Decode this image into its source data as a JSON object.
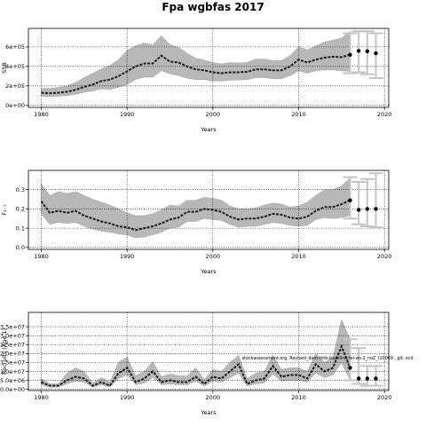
{
  "title": "Fpa wgbfas 2017",
  "colors": {
    "band": "#b8b8b8",
    "line": "#1a1a1a",
    "proj_bar": "#c4c4c4",
    "grid": "#000000"
  },
  "chart_data": [
    {
      "type": "line",
      "xlabel": "Years",
      "ylabel": "SSB",
      "xlim": [
        1978.5,
        2020.5
      ],
      "ylim": [
        -20000,
        790000
      ],
      "xticks": [
        1980,
        1990,
        2000,
        2010,
        2020
      ],
      "xtick_labels": [
        "1980",
        "1990",
        "2000",
        "2010",
        "2020"
      ],
      "yticks": [
        0,
        200000,
        400000,
        600000
      ],
      "ytick_labels": [
        "0e+00",
        "2e+05",
        "4e+05",
        "6e+05"
      ],
      "grid": true,
      "x": [
        1980,
        1981,
        1982,
        1983,
        1984,
        1985,
        1986,
        1987,
        1988,
        1989,
        1990,
        1991,
        1992,
        1993,
        1994,
        1995,
        1996,
        1997,
        1998,
        1999,
        2000,
        2001,
        2002,
        2003,
        2004,
        2005,
        2006,
        2007,
        2008,
        2009,
        2010,
        2011,
        2012,
        2013,
        2014,
        2015,
        2016
      ],
      "series": [
        {
          "role": "estimate",
          "values": [
            130000,
            125000,
            130000,
            140000,
            160000,
            190000,
            215000,
            250000,
            265000,
            300000,
            350000,
            400000,
            430000,
            430000,
            510000,
            450000,
            440000,
            400000,
            370000,
            360000,
            340000,
            330000,
            340000,
            340000,
            345000,
            370000,
            370000,
            360000,
            360000,
            400000,
            470000,
            440000,
            470000,
            490000,
            500000,
            495000,
            520000
          ]
        },
        {
          "role": "upper",
          "values": [
            175000,
            175000,
            185000,
            200000,
            235000,
            285000,
            330000,
            375000,
            410000,
            470000,
            565000,
            610000,
            640000,
            620000,
            715000,
            625000,
            595000,
            535000,
            485000,
            465000,
            440000,
            425000,
            440000,
            435000,
            440000,
            475000,
            475000,
            460000,
            460000,
            510000,
            600000,
            570000,
            610000,
            650000,
            670000,
            690000,
            760000
          ]
        },
        {
          "role": "lower",
          "values": [
            95000,
            90000,
            95000,
            100000,
            115000,
            135000,
            150000,
            170000,
            165000,
            185000,
            215000,
            265000,
            290000,
            290000,
            355000,
            325000,
            305000,
            280000,
            265000,
            265000,
            250000,
            250000,
            260000,
            260000,
            265000,
            285000,
            285000,
            275000,
            275000,
            305000,
            355000,
            330000,
            355000,
            365000,
            365000,
            355000,
            350000
          ]
        }
      ],
      "projection": {
        "x": [
          2016,
          2017,
          2018,
          2019
        ],
        "values": [
          520000,
          560000,
          555000,
          535000
        ],
        "upper": [
          740000,
          760000,
          760000,
          740000
        ],
        "lower": [
          330000,
          340000,
          320000,
          280000
        ]
      }
    },
    {
      "type": "line",
      "xlabel": "Years",
      "ylabel": "F₃₋₇",
      "xlim": [
        1978.5,
        2020.5
      ],
      "ylim": [
        -0.01,
        0.4
      ],
      "xticks": [
        1980,
        1990,
        2000,
        2010,
        2020
      ],
      "xtick_labels": [
        "1980",
        "1990",
        "2000",
        "2010",
        "2020"
      ],
      "yticks": [
        0.0,
        0.1,
        0.2,
        0.3
      ],
      "ytick_labels": [
        "0.0",
        "0.1",
        "0.2",
        "0.3"
      ],
      "grid": true,
      "x": [
        1980,
        1981,
        1982,
        1983,
        1984,
        1985,
        1986,
        1987,
        1988,
        1989,
        1990,
        1991,
        1992,
        1993,
        1994,
        1995,
        1996,
        1997,
        1998,
        1999,
        2000,
        2001,
        2002,
        2003,
        2004,
        2005,
        2006,
        2007,
        2008,
        2009,
        2010,
        2011,
        2012,
        2013,
        2014,
        2015,
        2016
      ],
      "series": [
        {
          "role": "estimate",
          "values": [
            0.24,
            0.18,
            0.19,
            0.18,
            0.19,
            0.165,
            0.15,
            0.135,
            0.125,
            0.11,
            0.105,
            0.09,
            0.1,
            0.11,
            0.125,
            0.145,
            0.155,
            0.185,
            0.185,
            0.2,
            0.195,
            0.185,
            0.16,
            0.145,
            0.15,
            0.15,
            0.16,
            0.175,
            0.17,
            0.155,
            0.15,
            0.16,
            0.19,
            0.21,
            0.21,
            0.225,
            0.245
          ]
        },
        {
          "role": "upper",
          "values": [
            0.33,
            0.27,
            0.29,
            0.28,
            0.29,
            0.27,
            0.25,
            0.235,
            0.22,
            0.2,
            0.18,
            0.165,
            0.165,
            0.175,
            0.195,
            0.22,
            0.215,
            0.245,
            0.245,
            0.26,
            0.255,
            0.245,
            0.215,
            0.2,
            0.2,
            0.205,
            0.22,
            0.23,
            0.225,
            0.21,
            0.215,
            0.235,
            0.27,
            0.3,
            0.3,
            0.32,
            0.36
          ]
        },
        {
          "role": "lower",
          "values": [
            0.175,
            0.12,
            0.13,
            0.125,
            0.13,
            0.11,
            0.095,
            0.085,
            0.08,
            0.07,
            0.065,
            0.05,
            0.055,
            0.065,
            0.08,
            0.1,
            0.105,
            0.135,
            0.135,
            0.15,
            0.145,
            0.14,
            0.12,
            0.105,
            0.11,
            0.11,
            0.12,
            0.13,
            0.125,
            0.115,
            0.11,
            0.115,
            0.145,
            0.155,
            0.15,
            0.155,
            0.165
          ]
        }
      ],
      "projection": {
        "x": [
          2016,
          2017,
          2018,
          2019
        ],
        "values": [
          0.245,
          0.195,
          0.2,
          0.2
        ],
        "upper": [
          0.365,
          0.34,
          0.355,
          0.385
        ],
        "lower": [
          0.15,
          0.12,
          0.11,
          0.105
        ]
      }
    },
    {
      "type": "line",
      "xlabel": "Years",
      "ylabel": "Recruits (Age 1)",
      "xlim": [
        1978.5,
        2020.5
      ],
      "ylim": [
        -700000,
        43000000
      ],
      "xticks": [
        1980,
        1990,
        2000,
        2010,
        2020
      ],
      "xtick_labels": [
        "1980",
        "1990",
        "2000",
        "2010",
        "2020"
      ],
      "yticks": [
        0,
        5000000,
        10000000,
        15000000,
        20000000,
        25000000,
        30000000,
        35000000
      ],
      "ytick_labels": [
        "0.0e+00",
        "5.0e+06",
        "1.0e+07",
        "1.5e+07",
        "2.0e+07",
        "2.5e+07",
        "3.0e+07",
        "3.5e+07"
      ],
      "grid": true,
      "x": [
        1980,
        1981,
        1982,
        1983,
        1984,
        1985,
        1986,
        1987,
        1988,
        1989,
        1990,
        1991,
        1992,
        1993,
        1994,
        1995,
        1996,
        1997,
        1998,
        1999,
        2000,
        2001,
        2002,
        2003,
        2004,
        2005,
        2006,
        2007,
        2008,
        2009,
        2010,
        2011,
        2012,
        2013,
        2014,
        2015,
        2016
      ],
      "series": [
        {
          "role": "estimate",
          "values": [
            4000000,
            2000000,
            2000000,
            5000000,
            7000000,
            6000000,
            2000000,
            4000000,
            2000000,
            9000000,
            12000000,
            4000000,
            6000000,
            10000000,
            4000000,
            5000000,
            4000000,
            4000000,
            7000000,
            3000000,
            7000000,
            6000000,
            10000000,
            14000000,
            3000000,
            5000000,
            6000000,
            13000000,
            7000000,
            8000000,
            8000000,
            6000000,
            14000000,
            10000000,
            12000000,
            24000000,
            12000000
          ]
        },
        {
          "role": "upper",
          "values": [
            6000000,
            3000000,
            3000000,
            9000000,
            12000000,
            10000000,
            3500000,
            6500000,
            4000000,
            15000000,
            18000000,
            7500000,
            10000000,
            15500000,
            7000000,
            8500000,
            7500000,
            7500000,
            12000000,
            5500000,
            11000000,
            10000000,
            15000000,
            19000000,
            6000000,
            9000000,
            10000000,
            19000000,
            11000000,
            12000000,
            12000000,
            10000000,
            20000000,
            15000000,
            18000000,
            39000000,
            28000000
          ]
        },
        {
          "role": "lower",
          "values": [
            2500000,
            1100000,
            1200000,
            3000000,
            4500000,
            4000000,
            1100000,
            2500000,
            1200000,
            6000000,
            8000000,
            2500000,
            3500000,
            6500000,
            2500000,
            3000000,
            2500000,
            2500000,
            4500000,
            1800000,
            4500000,
            4000000,
            6500000,
            9000000,
            1800000,
            3000000,
            3500000,
            8500000,
            4500000,
            5000000,
            5000000,
            4000000,
            9000000,
            6500000,
            8000000,
            15000000,
            5000000
          ]
        }
      ],
      "projection": {
        "x": [
          2016,
          2017,
          2018,
          2019
        ],
        "values": [
          12000000,
          6000000,
          6000000,
          6000000
        ],
        "upper": [
          28000000,
          23000000,
          13000000,
          13000000
        ],
        "lower": [
          5000000,
          3000000,
          2000000,
          2000000
        ]
      },
      "annotation": {
        "text": "stockassessment.org, Revised_dam-tmb-baseline-fer-an-2_noZ_t10069 , git: ecd",
        "x": 2003.4,
        "y": 16800000
      }
    }
  ]
}
